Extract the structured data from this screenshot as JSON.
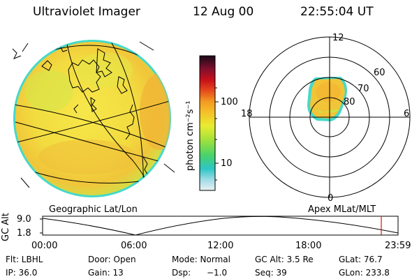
{
  "header": {
    "instrument": "Ultraviolet Imager",
    "date": "12 Aug 00",
    "time": "22:55:04 UT"
  },
  "colorbar": {
    "unit_label": "photon cm⁻²s⁻¹",
    "ticks": [
      "100",
      "10"
    ],
    "scale": "log"
  },
  "polar_plot": {
    "mlt_labels": [
      "12",
      "18",
      "6",
      "0"
    ],
    "lat_labels": [
      "60",
      "70",
      "80"
    ]
  },
  "panel_labels": {
    "left": "Geographic Lat/Lon",
    "right": "Apex MLat/MLT"
  },
  "altitude_plot": {
    "ylabel": "GC Alt",
    "y_ticks": [
      "9.0",
      "1.8"
    ],
    "x_ticks": [
      "00:00",
      "06:00",
      "12:00",
      "18:00",
      "23:59"
    ],
    "current_marker_color": "#e01010"
  },
  "info": {
    "flt": "Flt: LBHL",
    "ip": "IP: 36.0",
    "door": "Door: Open",
    "gain": "Gain: 13",
    "mode": "Mode: Normal",
    "dsp": "Dsp:",
    "dsp_value": "−1.0",
    "gc_alt": "GC Alt: 3.5 Re",
    "seq": "Seq: 39",
    "glat": "GLat: 76.7",
    "glon": "GLon: 233.8"
  },
  "colors": {
    "fill_yellow": "#f5e84a",
    "fill_orange": "#f5b030",
    "fill_green": "#bfe84a",
    "edge_cyan": "#45d9c9"
  }
}
